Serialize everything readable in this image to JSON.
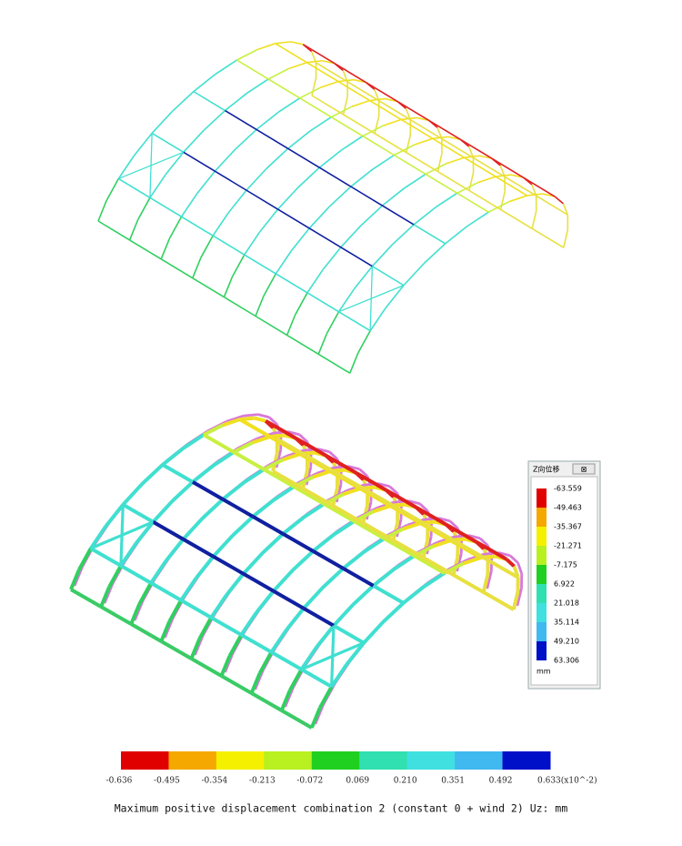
{
  "legend": {
    "title": "Z向位移",
    "values": [
      "-63.559",
      "-49.463",
      "-35.367",
      "-21.271",
      "-7.175",
      "6.922",
      "21.018",
      "35.114",
      "49.210",
      "63.306"
    ],
    "unit": "mm"
  },
  "color_bar": {
    "labels": [
      "-0.636",
      "-0.495",
      "-0.354",
      "-0.213",
      "-0.072",
      "0.069",
      "0.210",
      "0.351",
      "0.492",
      "0.633(x10^-2)"
    ]
  },
  "caption": "Maximum positive displacement combination 2 (constant 0 + wind 2) Uz: mm"
}
